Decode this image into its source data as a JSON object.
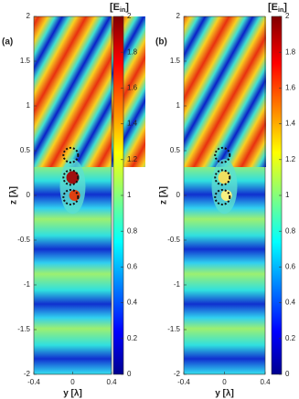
{
  "chart_data": [
    {
      "type": "heatmap",
      "panel_label": "(a)",
      "xlabel": "y [λ]",
      "ylabel": "z [λ]",
      "xlim": [
        -0.4,
        0.4
      ],
      "xticks": [
        -0.4,
        0,
        0.4
      ],
      "ylim": [
        -2,
        2
      ],
      "yticks": [
        -2,
        -1.5,
        -1,
        -0.5,
        0,
        0.5,
        1,
        1.5,
        2
      ],
      "clim": [
        0,
        2
      ],
      "cticks": [
        0,
        0.2,
        0.4,
        0.6,
        0.8,
        1,
        1.2,
        1.4,
        1.6,
        1.8,
        2
      ],
      "colorbar_title": [
        "[E",
        "in",
        "]"
      ]
    },
    {
      "type": "heatmap",
      "panel_label": "(b)",
      "xlabel": "y [λ]",
      "ylabel": "z [λ]",
      "xlim": [
        -0.4,
        0.4
      ],
      "xticks": [
        -0.4,
        0,
        0.4
      ],
      "ylim": [
        -2,
        2
      ],
      "yticks": [
        -2,
        -1.5,
        -1,
        -0.5,
        0,
        0.5,
        1,
        1.5,
        2
      ],
      "clim": [
        0,
        2
      ],
      "cticks": [
        0,
        0.2,
        0.4,
        0.6,
        0.8,
        1,
        1.2,
        1.4,
        1.6,
        1.8,
        2
      ],
      "colorbar_title": [
        "[E",
        "in",
        "]"
      ]
    }
  ]
}
